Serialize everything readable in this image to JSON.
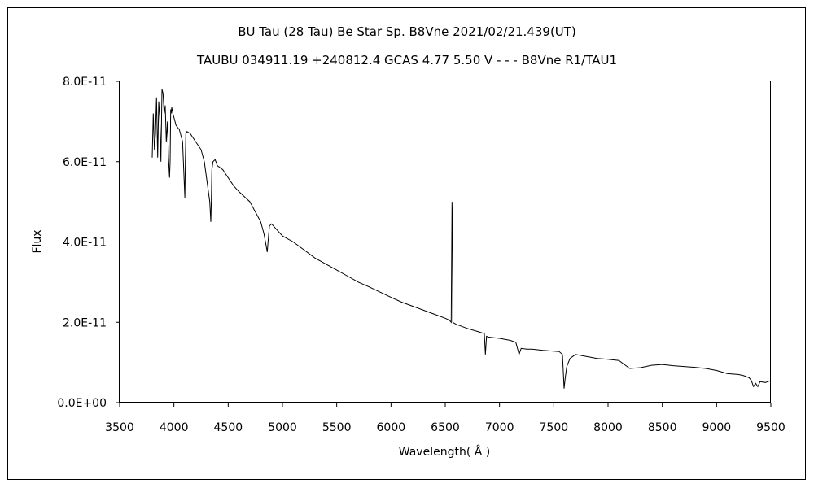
{
  "chart_data": {
    "type": "line",
    "title": "BU Tau (28 Tau)    Be Star    Sp. B8Vne    2021/02/21.439(UT)",
    "subtitle": "TAUBU 034911.19 +240812.4 GCAS 4.77 5.50 V - - - B8Vne R1/TAU1",
    "xlabel": "Wavelength( Å )",
    "ylabel": "Flux",
    "xlim": [
      3500,
      9500
    ],
    "ylim": [
      0,
      8e-11
    ],
    "x_ticks": [
      3500,
      4000,
      4500,
      5000,
      5500,
      6000,
      6500,
      7000,
      7500,
      8000,
      8500,
      9000,
      9500
    ],
    "x_tick_labels": [
      "3500",
      "4000",
      "4500",
      "5000",
      "5500",
      "6000",
      "6500",
      "7000",
      "7500",
      "8000",
      "8500",
      "9000",
      "9500"
    ],
    "y_ticks": [
      0,
      2e-11,
      4e-11,
      6e-11,
      8e-11
    ],
    "y_tick_labels": [
      "0.0E+00",
      "2.0E-11",
      "4.0E-11",
      "6.0E-11",
      "8.0E-11"
    ],
    "grid": false,
    "series": [
      {
        "x": [
          3800,
          3810,
          3820,
          3830,
          3840,
          3850,
          3860,
          3870,
          3880,
          3890,
          3900,
          3910,
          3920,
          3930,
          3940,
          3950,
          3960,
          3965,
          3970,
          3975,
          3980,
          3990,
          4000,
          4020,
          4050,
          4080,
          4095,
          4101,
          4105,
          4110,
          4120,
          4150,
          4200,
          4250,
          4280,
          4300,
          4330,
          4340,
          4345,
          4350,
          4360,
          4380,
          4400,
          4450,
          4500,
          4550,
          4600,
          4700,
          4800,
          4830,
          4850,
          4860,
          4870,
          4880,
          4900,
          4950,
          5000,
          5100,
          5200,
          5300,
          5400,
          5500,
          5600,
          5700,
          5800,
          5900,
          6000,
          6100,
          6200,
          6300,
          6400,
          6500,
          6540,
          6555,
          6562,
          6566,
          6570,
          6580,
          6600,
          6700,
          6800,
          6860,
          6870,
          6880,
          6900,
          7000,
          7100,
          7150,
          7180,
          7190,
          7200,
          7250,
          7300,
          7400,
          7500,
          7550,
          7580,
          7595,
          7605,
          7620,
          7650,
          7700,
          7800,
          7900,
          8000,
          8100,
          8150,
          8200,
          8300,
          8400,
          8500,
          8600,
          8700,
          8800,
          8900,
          9000,
          9100,
          9200,
          9250,
          9300,
          9320,
          9340,
          9360,
          9380,
          9400,
          9450,
          9500
        ],
        "y": [
          6.1e-11,
          7.2e-11,
          6.3e-11,
          6.7e-11,
          7.6e-11,
          6.1e-11,
          7.5e-11,
          7.1e-11,
          6e-11,
          7.8e-11,
          7.7e-11,
          7.2e-11,
          7.4e-11,
          6.5e-11,
          7e-11,
          6.1e-11,
          5.6e-11,
          6e-11,
          7.3e-11,
          7.2e-11,
          7.35e-11,
          7.2e-11,
          7.1e-11,
          6.9e-11,
          6.8e-11,
          6.5e-11,
          5.5e-11,
          5.1e-11,
          6e-11,
          6.7e-11,
          6.75e-11,
          6.7e-11,
          6.5e-11,
          6.3e-11,
          6e-11,
          5.6e-11,
          5e-11,
          4.5e-11,
          5.1e-11,
          5.8e-11,
          6e-11,
          6.05e-11,
          5.9e-11,
          5.8e-11,
          5.6e-11,
          5.4e-11,
          5.25e-11,
          5e-11,
          4.5e-11,
          4.2e-11,
          3.9e-11,
          3.75e-11,
          4.1e-11,
          4.4e-11,
          4.45e-11,
          4.3e-11,
          4.15e-11,
          4e-11,
          3.8e-11,
          3.6e-11,
          3.45e-11,
          3.3e-11,
          3.15e-11,
          3e-11,
          2.88e-11,
          2.75e-11,
          2.62e-11,
          2.5e-11,
          2.4e-11,
          2.3e-11,
          2.2e-11,
          2.1e-11,
          2.05e-11,
          2e-11,
          5e-11,
          4.5e-11,
          2e-11,
          1.98e-11,
          1.95e-11,
          1.85e-11,
          1.77e-11,
          1.72e-11,
          1.2e-11,
          1.65e-11,
          1.63e-11,
          1.6e-11,
          1.55e-11,
          1.5e-11,
          1.2e-11,
          1.28e-11,
          1.35e-11,
          1.33e-11,
          1.33e-11,
          1.3e-11,
          1.28e-11,
          1.27e-11,
          1.2e-11,
          3.5e-12,
          6e-12,
          9e-12,
          1.1e-11,
          1.2e-11,
          1.15e-11,
          1.1e-11,
          1.08e-11,
          1.05e-11,
          9.5e-12,
          8.5e-12,
          8.7e-12,
          9.3e-12,
          9.5e-12,
          9.2e-12,
          9e-12,
          8.8e-12,
          8.5e-12,
          8e-12,
          7.2e-12,
          7e-12,
          6.7e-12,
          6.2e-12,
          5.5e-12,
          4e-12,
          4.8e-12,
          4e-12,
          5.2e-12,
          5e-12,
          5.5e-12
        ]
      }
    ]
  }
}
